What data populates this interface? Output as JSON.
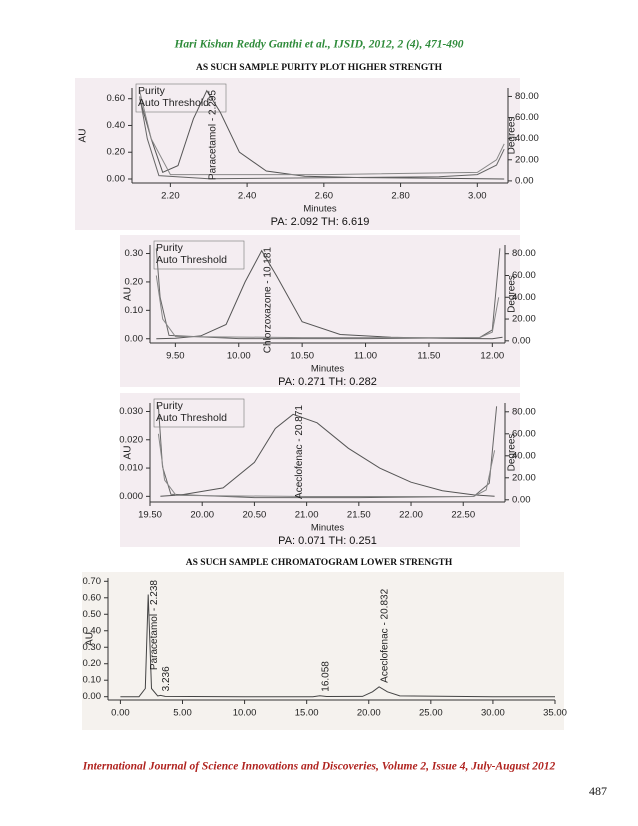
{
  "header": "Hari Kishan Reddy Ganthi et al., IJSID, 2012, 2 (4), 471-490",
  "section_titles": [
    "AS SUCH SAMPLE PURITY PLOT HIGHER STRENGTH",
    "AS SUCH SAMPLE CHROMATOGRAM LOWER STRENGTH"
  ],
  "footer": "International Journal of Science Innovations and Discoveries, Volume 2, Issue 4, July-August 2012",
  "page_number": 487,
  "chart_data": [
    {
      "type": "line",
      "background": "#f4edf1",
      "xlabel": "Minutes",
      "ylabel": "AU",
      "y2label": "Degrees",
      "caption": "PA: 2.092  TH: 6.619",
      "xlim": [
        2.1,
        3.08
      ],
      "xticks": [
        {
          "value": 2.2,
          "label": "2.20"
        },
        {
          "value": 2.4,
          "label": "2.40"
        },
        {
          "value": 2.6,
          "label": "2.60"
        },
        {
          "value": 2.8,
          "label": "2.80"
        },
        {
          "value": 3.0,
          "label": "3.00"
        }
      ],
      "ylim": [
        -0.03,
        0.68
      ],
      "yticks": [
        {
          "value": 0,
          "label": "0.00"
        },
        {
          "value": 0.2,
          "label": "0.20"
        },
        {
          "value": 0.4,
          "label": "0.40"
        },
        {
          "value": 0.6,
          "label": "0.60"
        }
      ],
      "y2lim": [
        -2,
        88
      ],
      "y2ticks": [
        {
          "value": 0,
          "label": "0.00"
        },
        {
          "value": 20,
          "label": "20.00"
        },
        {
          "value": 40,
          "label": "40.00"
        },
        {
          "value": 60,
          "label": "60.00"
        },
        {
          "value": 80,
          "label": "80.00"
        }
      ],
      "series": [
        {
          "color": "#555555",
          "x": [
            2.12,
            2.15,
            2.18,
            2.22,
            2.26,
            2.295,
            2.33,
            2.38,
            2.45,
            2.55,
            2.7,
            2.9,
            3.07
          ],
          "values": [
            0.6,
            0.3,
            0.05,
            0.1,
            0.45,
            0.66,
            0.5,
            0.2,
            0.06,
            0.02,
            0.01,
            0.005,
            0.0
          ]
        },
        {
          "name": "Purity",
          "color": "#666666",
          "axis": "y2",
          "x": [
            2.12,
            2.14,
            2.17,
            2.3,
            2.6,
            2.9,
            3.0,
            3.05,
            3.07
          ],
          "values": [
            80,
            40,
            5,
            2,
            3,
            4,
            6,
            15,
            30
          ]
        },
        {
          "name": "Auto Threshold",
          "color": "#888888",
          "axis": "y2",
          "x": [
            2.12,
            2.15,
            2.2,
            2.6,
            3.0,
            3.05,
            3.07
          ],
          "values": [
            85,
            40,
            6,
            6,
            8,
            20,
            35
          ]
        }
      ],
      "annotations": [
        {
          "text": "Paracetamol - 2.295",
          "x": 2.295
        }
      ]
    },
    {
      "type": "line",
      "background": "#f4edf1",
      "xlabel": "Minutes",
      "ylabel": "AU",
      "y2label": "Degrees",
      "caption": "PA: 0.271  TH: 0.282",
      "xlim": [
        9.3,
        12.1
      ],
      "xticks": [
        {
          "value": 9.5,
          "label": "9.50"
        },
        {
          "value": 10,
          "label": "10.00"
        },
        {
          "value": 10.5,
          "label": "10.50"
        },
        {
          "value": 11,
          "label": "11.00"
        },
        {
          "value": 11.5,
          "label": "11.50"
        },
        {
          "value": 12,
          "label": "12.00"
        }
      ],
      "ylim": [
        -0.015,
        0.33
      ],
      "yticks": [
        {
          "value": 0,
          "label": "0.00"
        },
        {
          "value": 0.1,
          "label": "0.10"
        },
        {
          "value": 0.2,
          "label": "0.20"
        },
        {
          "value": 0.3,
          "label": "0.30"
        }
      ],
      "y2lim": [
        -2,
        88
      ],
      "y2ticks": [
        {
          "value": 0,
          "label": "0.00"
        },
        {
          "value": 20,
          "label": "20.00"
        },
        {
          "value": 40,
          "label": "40.00"
        },
        {
          "value": 60,
          "label": "60.00"
        },
        {
          "value": 80,
          "label": "80.00"
        }
      ],
      "series": [
        {
          "color": "#555555",
          "x": [
            9.35,
            9.5,
            9.7,
            9.9,
            10.05,
            10.181,
            10.3,
            10.5,
            10.8,
            11.2,
            11.6,
            12.0,
            12.08
          ],
          "values": [
            0.0,
            0.002,
            0.01,
            0.05,
            0.2,
            0.31,
            0.22,
            0.06,
            0.015,
            0.005,
            0.002,
            0.0,
            0.005
          ]
        },
        {
          "name": "Purity",
          "color": "#666666",
          "axis": "y2",
          "x": [
            9.35,
            9.38,
            9.45,
            10.0,
            11.0,
            11.9,
            12.0,
            12.06
          ],
          "values": [
            85,
            40,
            5,
            2,
            2,
            3,
            10,
            85
          ]
        },
        {
          "name": "Auto Threshold",
          "color": "#888888",
          "axis": "y2",
          "x": [
            9.35,
            9.4,
            9.5,
            10.5,
            11.9,
            12.0,
            12.05
          ],
          "values": [
            60,
            20,
            4,
            3,
            3,
            8,
            40
          ]
        }
      ],
      "annotations": [
        {
          "text": "Chlorzoxazone - 10.181",
          "x": 10.181
        }
      ]
    },
    {
      "type": "line",
      "background": "#f4edf1",
      "xlabel": "Minutes",
      "ylabel": "AU",
      "y2label": "Degrees",
      "caption": "PA: 0.071  TH: 0.251",
      "xlim": [
        19.5,
        22.9
      ],
      "xticks": [
        {
          "value": 19.5,
          "label": "19.50"
        },
        {
          "value": 20,
          "label": "20.00"
        },
        {
          "value": 20.5,
          "label": "20.50"
        },
        {
          "value": 21,
          "label": "21.00"
        },
        {
          "value": 21.5,
          "label": "21.50"
        },
        {
          "value": 22,
          "label": "22.00"
        },
        {
          "value": 22.5,
          "label": "22.50"
        }
      ],
      "ylim": [
        -0.002,
        0.033
      ],
      "yticks": [
        {
          "value": 0,
          "label": "0.000"
        },
        {
          "value": 0.01,
          "label": "0.010"
        },
        {
          "value": 0.02,
          "label": "0.020"
        },
        {
          "value": 0.03,
          "label": "0.030"
        }
      ],
      "y2lim": [
        -2,
        88
      ],
      "y2ticks": [
        {
          "value": 0,
          "label": "0.00"
        },
        {
          "value": 20,
          "label": "20.00"
        },
        {
          "value": 40,
          "label": "40.00"
        },
        {
          "value": 60,
          "label": "60.00"
        },
        {
          "value": 80,
          "label": "80.00"
        }
      ],
      "series": [
        {
          "color": "#555555",
          "x": [
            19.6,
            19.8,
            20.2,
            20.5,
            20.7,
            20.871,
            21.1,
            21.4,
            21.7,
            22.0,
            22.3,
            22.6,
            22.8
          ],
          "values": [
            0.0,
            0.0005,
            0.003,
            0.012,
            0.024,
            0.029,
            0.026,
            0.017,
            0.01,
            0.005,
            0.002,
            0.0005,
            0.0
          ]
        },
        {
          "name": "Purity",
          "color": "#666666",
          "axis": "y2",
          "x": [
            19.58,
            19.62,
            19.7,
            20.5,
            21.5,
            22.6,
            22.75,
            22.82
          ],
          "values": [
            85,
            30,
            5,
            2,
            2,
            3,
            15,
            85
          ]
        },
        {
          "name": "Auto Threshold",
          "color": "#888888",
          "axis": "y2",
          "x": [
            19.58,
            19.64,
            19.75,
            21.0,
            22.6,
            22.72,
            22.8
          ],
          "values": [
            60,
            18,
            4,
            3,
            3,
            9,
            45
          ]
        }
      ],
      "annotations": [
        {
          "text": "Aceclofenac - 20.871",
          "x": 20.871
        }
      ]
    },
    {
      "type": "line",
      "background": "#f5f2ee",
      "ylabel": "AU",
      "xlim": [
        -1,
        35
      ],
      "xticks": [
        {
          "value": 0,
          "label": "0.00"
        },
        {
          "value": 5,
          "label": "5.00"
        },
        {
          "value": 10,
          "label": "10.00"
        },
        {
          "value": 15,
          "label": "15.00"
        },
        {
          "value": 20,
          "label": "20.00"
        },
        {
          "value": 25,
          "label": "25.00"
        },
        {
          "value": 30,
          "label": "30.00"
        },
        {
          "value": 35,
          "label": "35.00"
        }
      ],
      "ylim": [
        -0.02,
        0.72
      ],
      "yticks": [
        {
          "value": 0,
          "label": "0.00"
        },
        {
          "value": 0.1,
          "label": "0.10"
        },
        {
          "value": 0.2,
          "label": "0.20"
        },
        {
          "value": 0.3,
          "label": "0.30"
        },
        {
          "value": 0.4,
          "label": "0.40"
        },
        {
          "value": 0.5,
          "label": "0.50"
        },
        {
          "value": 0.6,
          "label": "0.60"
        },
        {
          "value": 0.7,
          "label": "0.70"
        }
      ],
      "series": [
        {
          "color": "#444444",
          "x": [
            0,
            1.5,
            2.0,
            2.238,
            2.5,
            3.0,
            3.236,
            3.6,
            10,
            15.5,
            16.058,
            16.6,
            19.5,
            20.3,
            20.832,
            21.5,
            22.5,
            30,
            35
          ],
          "values": [
            0,
            0,
            0.05,
            0.62,
            0.05,
            0.005,
            0.008,
            0.002,
            0,
            0,
            0.006,
            0.001,
            0.002,
            0.03,
            0.06,
            0.03,
            0.005,
            0,
            0
          ]
        }
      ],
      "annotations": [
        {
          "text": "Paracetamol - 2.238",
          "x": 2.238
        },
        {
          "text": "3.236",
          "x": 3.236
        },
        {
          "text": "16.058",
          "x": 16.058
        },
        {
          "text": "Aceclofenac - 20.832",
          "x": 20.832
        }
      ]
    }
  ]
}
